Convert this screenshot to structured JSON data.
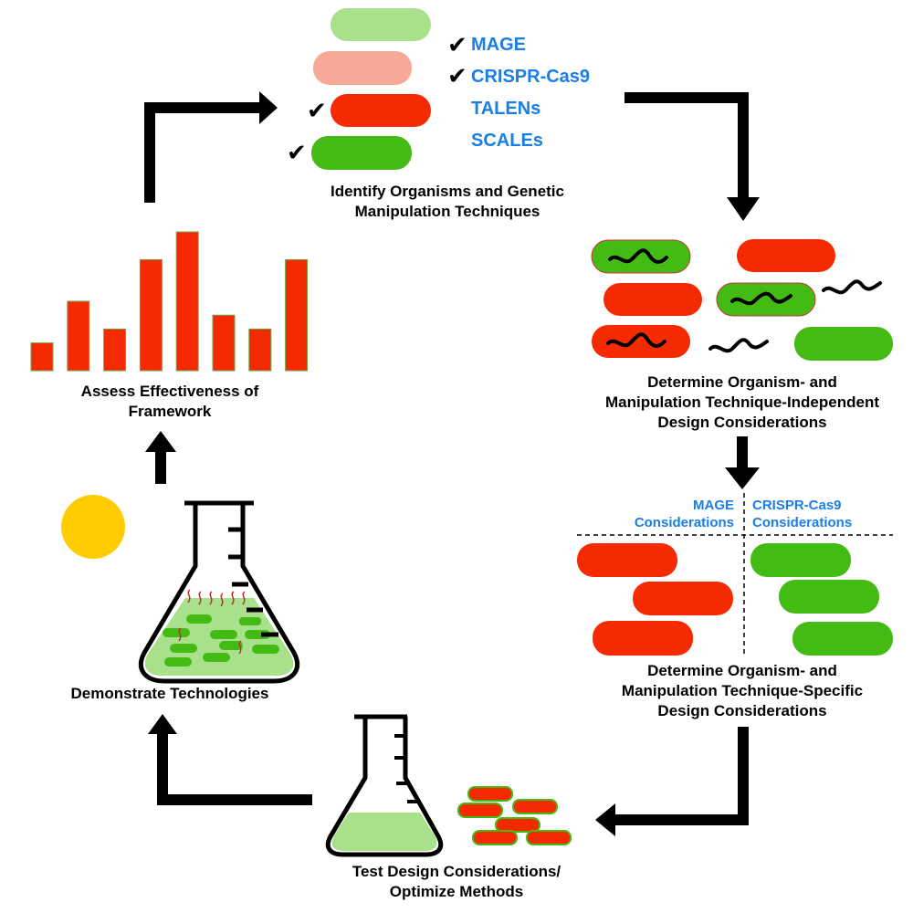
{
  "steps": {
    "identify": {
      "line1": "Identify Organisms and Genetic",
      "line2": "Manipulation Techniques"
    },
    "independent": {
      "line1": "Determine Organism- and",
      "line2": "Manipulation Technique-Independent",
      "line3": "Design Considerations"
    },
    "specific": {
      "line1": "Determine Organism- and",
      "line2": "Manipulation Technique-Specific",
      "line3": "Design Considerations"
    },
    "test": {
      "line1": "Test Design Considerations/",
      "line2": "Optimize Methods"
    },
    "demonstrate": {
      "line1": "Demonstrate Technologies"
    },
    "assess": {
      "line1": "Assess Effectiveness of",
      "line2": "Framework"
    }
  },
  "techniques": [
    {
      "label": "MAGE",
      "checked": true
    },
    {
      "label": "CRISPR-Cas9",
      "checked": true
    },
    {
      "label": "TALENs",
      "checked": false
    },
    {
      "label": "SCALEs",
      "checked": false
    }
  ],
  "considerations": {
    "left": {
      "line1": "MAGE",
      "line2": "Considerations"
    },
    "right": {
      "line1": "CRISPR-Cas9",
      "line2": "Considerations"
    }
  },
  "bar_chart": {
    "values": [
      1,
      2.5,
      1.5,
      4,
      5,
      2,
      1.5,
      4
    ]
  },
  "colors": {
    "red": "#f52a00",
    "green": "#44bb14",
    "light_green": "#a8e08c",
    "light_red": "#f8a896",
    "blue_text": "#1a7ee6",
    "sun": "#ffcc00",
    "arrow": "#000000"
  },
  "icons": [
    "check-icon",
    "flask-icon",
    "sun-icon",
    "bacteria-icon",
    "dna-strand-icon"
  ]
}
